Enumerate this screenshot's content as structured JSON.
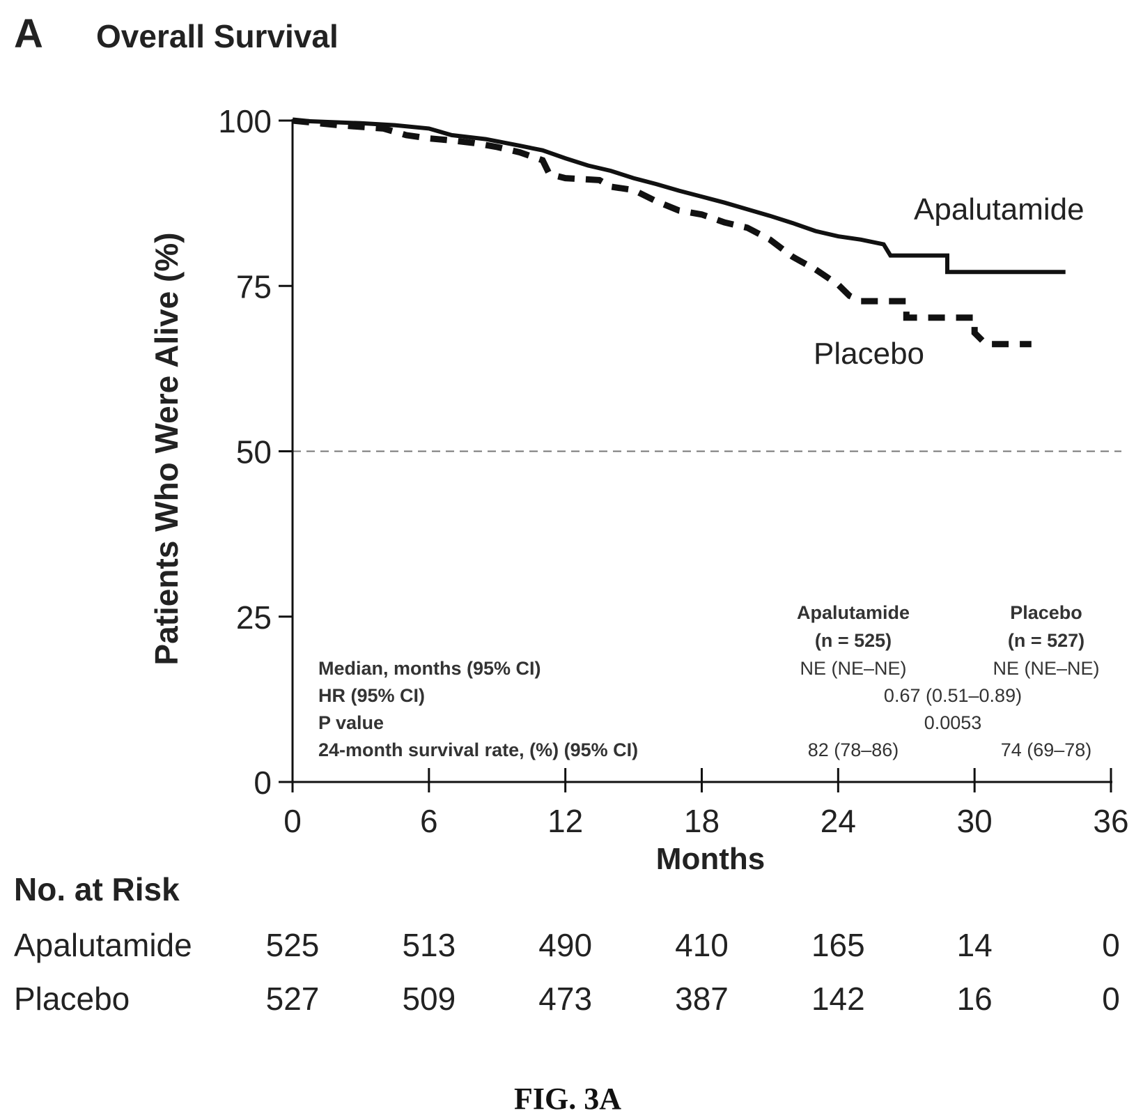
{
  "panel_letter": "A",
  "chart_data": {
    "type": "line",
    "title": "Overall Survival",
    "xlabel": "Months",
    "ylabel": "Patients Who Were Alive (%)",
    "xlim": [
      0,
      36
    ],
    "ylim": [
      0,
      100
    ],
    "x_ticks": [
      0,
      6,
      12,
      18,
      24,
      30,
      36
    ],
    "y_ticks": [
      0,
      25,
      50,
      75,
      100
    ],
    "reference_line_y": 50,
    "grid": false,
    "series": [
      {
        "name": "Apalutamide",
        "style": "solid",
        "color": "#111111",
        "points": [
          [
            0,
            100
          ],
          [
            3,
            99.6
          ],
          [
            4.5,
            99.3
          ],
          [
            6,
            98.8
          ],
          [
            7,
            97.8
          ],
          [
            8.5,
            97.2
          ],
          [
            10,
            96.2
          ],
          [
            11,
            95.5
          ],
          [
            12,
            94.3
          ],
          [
            13,
            93.2
          ],
          [
            14,
            92.4
          ],
          [
            15,
            91.3
          ],
          [
            16,
            90.4
          ],
          [
            17,
            89.4
          ],
          [
            18,
            88.5
          ],
          [
            19,
            87.6
          ],
          [
            20,
            86.6
          ],
          [
            21,
            85.6
          ],
          [
            22,
            84.5
          ],
          [
            23,
            83.3
          ],
          [
            24,
            82.5
          ],
          [
            25,
            82.0
          ],
          [
            26,
            81.3
          ],
          [
            26.3,
            79.6
          ],
          [
            28.8,
            79.6
          ],
          [
            28.8,
            77.1
          ],
          [
            34,
            77.1
          ]
        ]
      },
      {
        "name": "Placebo",
        "style": "dashed",
        "color": "#111111",
        "points": [
          [
            0,
            100
          ],
          [
            2,
            99.3
          ],
          [
            4,
            98.8
          ],
          [
            5,
            97.8
          ],
          [
            6,
            97.3
          ],
          [
            7,
            97.0
          ],
          [
            8,
            96.6
          ],
          [
            9,
            96.0
          ],
          [
            10,
            95.2
          ],
          [
            11,
            94.0
          ],
          [
            11.3,
            91.9
          ],
          [
            12,
            91.3
          ],
          [
            13.5,
            91.0
          ],
          [
            14,
            90.0
          ],
          [
            15,
            89.5
          ],
          [
            16,
            87.8
          ],
          [
            17,
            86.4
          ],
          [
            18,
            85.8
          ],
          [
            19,
            84.6
          ],
          [
            20,
            83.8
          ],
          [
            21,
            82.0
          ],
          [
            22,
            79.4
          ],
          [
            23,
            77.5
          ],
          [
            24,
            75.2
          ],
          [
            24.5,
            73.5
          ],
          [
            25,
            72.7
          ],
          [
            27,
            72.7
          ],
          [
            27,
            70.2
          ],
          [
            30,
            70.2
          ],
          [
            30,
            67.9
          ],
          [
            30.5,
            66.2
          ],
          [
            32.5,
            66.2
          ]
        ]
      }
    ],
    "annotations": [
      {
        "text": "Apalutamide",
        "series": "Apalutamide"
      },
      {
        "text": "Placebo",
        "series": "Placebo"
      }
    ],
    "stats_table": {
      "col_headers": [
        {
          "line1": "Apalutamide",
          "line2": "(n = 525)"
        },
        {
          "line1": "Placebo",
          "line2": "(n = 527)"
        }
      ],
      "rows": [
        {
          "label": "Median, months (95% CI)",
          "apalutamide": "NE (NE–NE)",
          "placebo": "NE (NE–NE)"
        },
        {
          "label": "HR (95% CI)",
          "combined": "0.67 (0.51–0.89)"
        },
        {
          "label": "P value",
          "combined": "0.0053"
        },
        {
          "label": "24-month survival rate, (%) (95% CI)",
          "apalutamide": "82 (78–86)",
          "placebo": "74 (69–78)"
        }
      ]
    },
    "risk_table": {
      "title": "No. at Risk",
      "rows": [
        {
          "label": "Apalutamide",
          "values": [
            525,
            513,
            490,
            410,
            165,
            14,
            0
          ]
        },
        {
          "label": "Placebo",
          "values": [
            527,
            509,
            473,
            387,
            142,
            16,
            0
          ]
        }
      ]
    }
  },
  "caption": "FIG. 3A"
}
